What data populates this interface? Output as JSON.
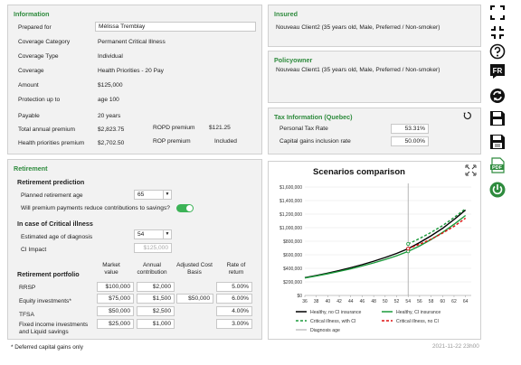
{
  "information": {
    "title": "Information",
    "prepared_for_label": "Prepared for",
    "prepared_for_value": "Mélissa Tremblay",
    "coverage_category_label": "Coverage Category",
    "coverage_category_value": "Permanent Critical Illness",
    "coverage_type_label": "Coverage Type",
    "coverage_type_value": "Individual",
    "coverage_label": "Coverage",
    "coverage_value": "Health Priorities - 20 Pay",
    "amount_label": "Amount",
    "amount_value": "$125,000",
    "protection_label": "Protection up to",
    "protection_value": "age 100",
    "payable_label": "Payable",
    "payable_value": "20 years",
    "total_premium_label": "Total annual premium",
    "total_premium_value": "$2,823.75",
    "ropd_label": "ROPD premium",
    "ropd_value": "$121.25",
    "health_premium_label": "Health priorities premium",
    "health_premium_value": "$2,702.50",
    "rop_label": "ROP premium",
    "rop_value": "Included"
  },
  "insured": {
    "title": "Insured",
    "value": "Nouveau Client2 (35 years old, Male, Preferred / Non-smoker)"
  },
  "policyowner": {
    "title": "Policyowner",
    "value": "Nouveau Client1 (35 years old, Male, Preferred / Non-smoker)"
  },
  "tax": {
    "title": "Tax Information (Quebec)",
    "personal_label": "Personal Tax Rate",
    "personal_value": "53.31%",
    "capital_label": "Capital gains inclusion rate",
    "capital_value": "50.00%"
  },
  "retirement": {
    "title": "Retirement",
    "prediction_heading": "Retirement prediction",
    "planned_age_label": "Planned retirement age",
    "planned_age_value": "65",
    "reduce_label": "Will premium payments reduce contributions to savings?",
    "ci_heading": "In case of Critical illness",
    "diag_age_label": "Estimated age of diagnosis",
    "diag_age_value": "54",
    "ci_impact_label": "CI Impact",
    "ci_impact_value": "$125,000",
    "portfolio_heading": "Retirement portfolio",
    "col_market": "Market value",
    "col_annual": "Annual contribution",
    "col_adjusted": "Adjusted Cost Basis",
    "col_rate": "Rate of return",
    "rows": [
      {
        "name": "RRSP",
        "market": "$100,000",
        "annual": "$2,000",
        "adjusted": "",
        "rate": "5.00%"
      },
      {
        "name": "Equity investments*",
        "market": "$75,000",
        "annual": "$1,500",
        "adjusted": "$50,000",
        "rate": "6.00%"
      },
      {
        "name": "TFSA",
        "market": "$50,000",
        "annual": "$2,500",
        "adjusted": "",
        "rate": "4.00%"
      },
      {
        "name": "Fixed income investments and Liquid savings",
        "market": "$25,000",
        "annual": "$1,000",
        "adjusted": "",
        "rate": "3.00%"
      }
    ]
  },
  "footnote": "* Deferred capital gains only",
  "timestamp": "2021-11-22 23h00",
  "sidebar_icons": [
    "expand-icon",
    "collapse-icon",
    "help-icon",
    "language-fr-icon",
    "refresh-icon",
    "save-icon",
    "save-as-icon",
    "pdf-icon",
    "power-icon"
  ],
  "colors": {
    "accent": "#2e8b3d",
    "toggle": "#3cb357"
  },
  "chart_data": {
    "type": "line",
    "title": "Scenarios comparison",
    "x": [
      36,
      38,
      40,
      42,
      44,
      46,
      48,
      50,
      52,
      54,
      56,
      58,
      60,
      62,
      64
    ],
    "xlim": [
      36,
      65
    ],
    "ylim": [
      0,
      1600000
    ],
    "yticks": [
      "$0",
      "$200,000",
      "$400,000",
      "$600,000",
      "$800,000",
      "$1,000,000",
      "$1,200,000",
      "$1,400,000",
      "$1,600,000"
    ],
    "series": [
      {
        "name": "Healthy, no CI insurance",
        "color": "#000000",
        "dash": false,
        "values": [
          262000,
          295000,
          330000,
          368000,
          410000,
          455000,
          505000,
          560000,
          620000,
          690000,
          780000,
          880000,
          990000,
          1120000,
          1260000
        ]
      },
      {
        "name": "Healthy, CI insurance",
        "color": "#1a9a3a",
        "dash": false,
        "values": [
          258000,
          288000,
          320000,
          355000,
          393000,
          435000,
          480000,
          530000,
          585000,
          650000,
          730000,
          825000,
          930000,
          1050000,
          1180000
        ]
      },
      {
        "name": "Critical illness, with CI",
        "color": "#1a9a3a",
        "dash": true,
        "values": [
          null,
          null,
          null,
          null,
          null,
          null,
          null,
          null,
          null,
          760000,
          840000,
          930000,
          1030000,
          1150000,
          1280000
        ]
      },
      {
        "name": "Critical illness, no CI",
        "color": "#dd1111",
        "dash": true,
        "values": [
          null,
          null,
          null,
          null,
          null,
          null,
          null,
          null,
          null,
          690000,
          755000,
          830000,
          920000,
          1020000,
          1140000
        ]
      }
    ],
    "marker_x": 54,
    "diagnosis_label": "Diagnosis age",
    "legend_position": "bottom"
  }
}
